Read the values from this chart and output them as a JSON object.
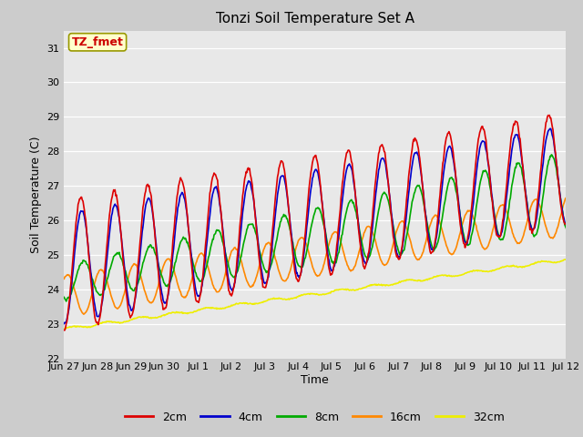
{
  "title": "Tonzi Soil Temperature Set A",
  "xlabel": "Time",
  "ylabel": "Soil Temperature (C)",
  "ylim": [
    22.0,
    31.5
  ],
  "yticks": [
    22.0,
    23.0,
    24.0,
    25.0,
    26.0,
    27.0,
    28.0,
    29.0,
    30.0,
    31.0
  ],
  "fig_bg_color": "#cccccc",
  "plot_bg": "#e8e8e8",
  "annotation_text": "TZ_fmet",
  "annotation_color": "#cc0000",
  "annotation_bg": "#ffffcc",
  "annotation_border": "#999900",
  "series": {
    "2cm": {
      "color": "#dd0000",
      "lw": 1.2
    },
    "4cm": {
      "color": "#0000cc",
      "lw": 1.2
    },
    "8cm": {
      "color": "#00aa00",
      "lw": 1.2
    },
    "16cm": {
      "color": "#ff8800",
      "lw": 1.2
    },
    "32cm": {
      "color": "#eeee00",
      "lw": 1.2
    }
  },
  "x_tick_labels": [
    "Jun 27",
    "Jun 28",
    "Jun 29",
    "Jun 30",
    "Jul 1",
    "Jul 2",
    "Jul 3",
    "Jul 4",
    "Jul 5",
    "Jul 6",
    "Jul 7",
    "Jul 8",
    "Jul 9",
    "Jul 10",
    "Jul 11",
    "Jul 12"
  ],
  "n_days": 16,
  "pts_per_day": 48
}
